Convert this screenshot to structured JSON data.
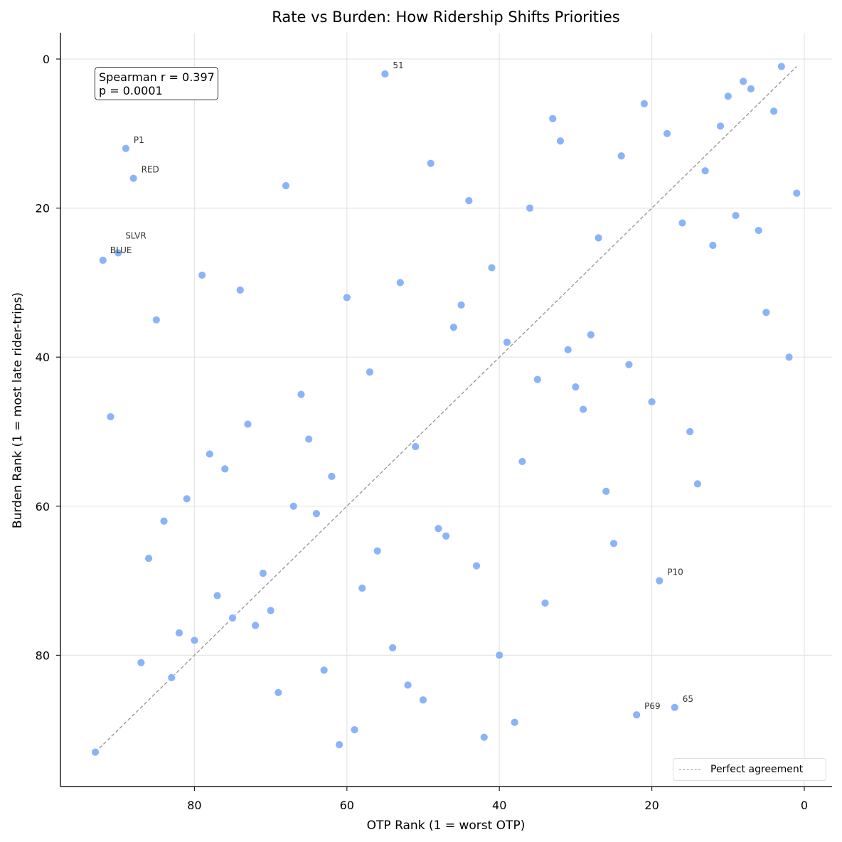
{
  "chart_data": {
    "type": "scatter",
    "title": "Rate vs Burden: How Ridership Shifts Priorities",
    "xlabel": "OTP Rank (1 = worst OTP)",
    "ylabel": "Burden Rank (1 = most late rider-trips)",
    "xlim": [
      97.5,
      -3.5
    ],
    "ylim": [
      96.5,
      -3.5
    ],
    "x_inverted": true,
    "y_inverted": true,
    "xticks": [
      80,
      60,
      40,
      20,
      0
    ],
    "yticks": [
      0,
      20,
      40,
      60,
      80
    ],
    "grid": true,
    "point_color": "#8ab4f8",
    "reference_line": {
      "label": "Perfect agreement",
      "from": [
        93,
        93
      ],
      "to": [
        1,
        1
      ],
      "style": "dashed",
      "color": "#9a9aa0"
    },
    "legend_position": "lower right",
    "annotation": {
      "line1": "Spearman r = 0.397",
      "line2": "p = 0.0001"
    },
    "points": [
      {
        "x": 55,
        "y": 2,
        "label": "51"
      },
      {
        "x": 89,
        "y": 12,
        "label": "P1"
      },
      {
        "x": 88,
        "y": 16,
        "label": "RED"
      },
      {
        "x": 90,
        "y": 26,
        "label": "SLVR"
      },
      {
        "x": 92,
        "y": 27,
        "label": "BLUE"
      },
      {
        "x": 19,
        "y": 70,
        "label": "P10"
      },
      {
        "x": 22,
        "y": 88,
        "label": "P69"
      },
      {
        "x": 17,
        "y": 87,
        "label": "65"
      },
      {
        "x": 3,
        "y": 1
      },
      {
        "x": 8,
        "y": 3
      },
      {
        "x": 7,
        "y": 4
      },
      {
        "x": 10,
        "y": 5
      },
      {
        "x": 21,
        "y": 6
      },
      {
        "x": 4,
        "y": 7
      },
      {
        "x": 33,
        "y": 8
      },
      {
        "x": 11,
        "y": 9
      },
      {
        "x": 18,
        "y": 10
      },
      {
        "x": 32,
        "y": 11
      },
      {
        "x": 24,
        "y": 13
      },
      {
        "x": 49,
        "y": 14
      },
      {
        "x": 13,
        "y": 15
      },
      {
        "x": 68,
        "y": 17
      },
      {
        "x": 1,
        "y": 18
      },
      {
        "x": 44,
        "y": 19
      },
      {
        "x": 36,
        "y": 20
      },
      {
        "x": 9,
        "y": 21
      },
      {
        "x": 16,
        "y": 22
      },
      {
        "x": 6,
        "y": 23
      },
      {
        "x": 27,
        "y": 24
      },
      {
        "x": 12,
        "y": 25
      },
      {
        "x": 41,
        "y": 28
      },
      {
        "x": 79,
        "y": 29
      },
      {
        "x": 53,
        "y": 30
      },
      {
        "x": 74,
        "y": 31
      },
      {
        "x": 60,
        "y": 32
      },
      {
        "x": 45,
        "y": 33
      },
      {
        "x": 5,
        "y": 34
      },
      {
        "x": 85,
        "y": 35
      },
      {
        "x": 46,
        "y": 36
      },
      {
        "x": 28,
        "y": 37
      },
      {
        "x": 39,
        "y": 38
      },
      {
        "x": 31,
        "y": 39
      },
      {
        "x": 2,
        "y": 40
      },
      {
        "x": 23,
        "y": 41
      },
      {
        "x": 57,
        "y": 42
      },
      {
        "x": 35,
        "y": 43
      },
      {
        "x": 30,
        "y": 44
      },
      {
        "x": 66,
        "y": 45
      },
      {
        "x": 20,
        "y": 46
      },
      {
        "x": 29,
        "y": 47
      },
      {
        "x": 91,
        "y": 48
      },
      {
        "x": 73,
        "y": 49
      },
      {
        "x": 15,
        "y": 50
      },
      {
        "x": 65,
        "y": 51
      },
      {
        "x": 51,
        "y": 52
      },
      {
        "x": 78,
        "y": 53
      },
      {
        "x": 37,
        "y": 54
      },
      {
        "x": 76,
        "y": 55
      },
      {
        "x": 62,
        "y": 56
      },
      {
        "x": 14,
        "y": 57
      },
      {
        "x": 26,
        "y": 58
      },
      {
        "x": 81,
        "y": 59
      },
      {
        "x": 67,
        "y": 60
      },
      {
        "x": 64,
        "y": 61
      },
      {
        "x": 84,
        "y": 62
      },
      {
        "x": 48,
        "y": 63
      },
      {
        "x": 47,
        "y": 64
      },
      {
        "x": 25,
        "y": 65
      },
      {
        "x": 56,
        "y": 66
      },
      {
        "x": 86,
        "y": 67
      },
      {
        "x": 43,
        "y": 68
      },
      {
        "x": 71,
        "y": 69
      },
      {
        "x": 58,
        "y": 71
      },
      {
        "x": 77,
        "y": 72
      },
      {
        "x": 34,
        "y": 73
      },
      {
        "x": 70,
        "y": 74
      },
      {
        "x": 75,
        "y": 75
      },
      {
        "x": 72,
        "y": 76
      },
      {
        "x": 82,
        "y": 77
      },
      {
        "x": 80,
        "y": 78
      },
      {
        "x": 54,
        "y": 79
      },
      {
        "x": 40,
        "y": 80
      },
      {
        "x": 87,
        "y": 81
      },
      {
        "x": 63,
        "y": 82
      },
      {
        "x": 83,
        "y": 83
      },
      {
        "x": 52,
        "y": 84
      },
      {
        "x": 69,
        "y": 85
      },
      {
        "x": 50,
        "y": 86
      },
      {
        "x": 38,
        "y": 89
      },
      {
        "x": 59,
        "y": 90
      },
      {
        "x": 42,
        "y": 91
      },
      {
        "x": 61,
        "y": 92
      },
      {
        "x": 93,
        "y": 93
      }
    ]
  }
}
